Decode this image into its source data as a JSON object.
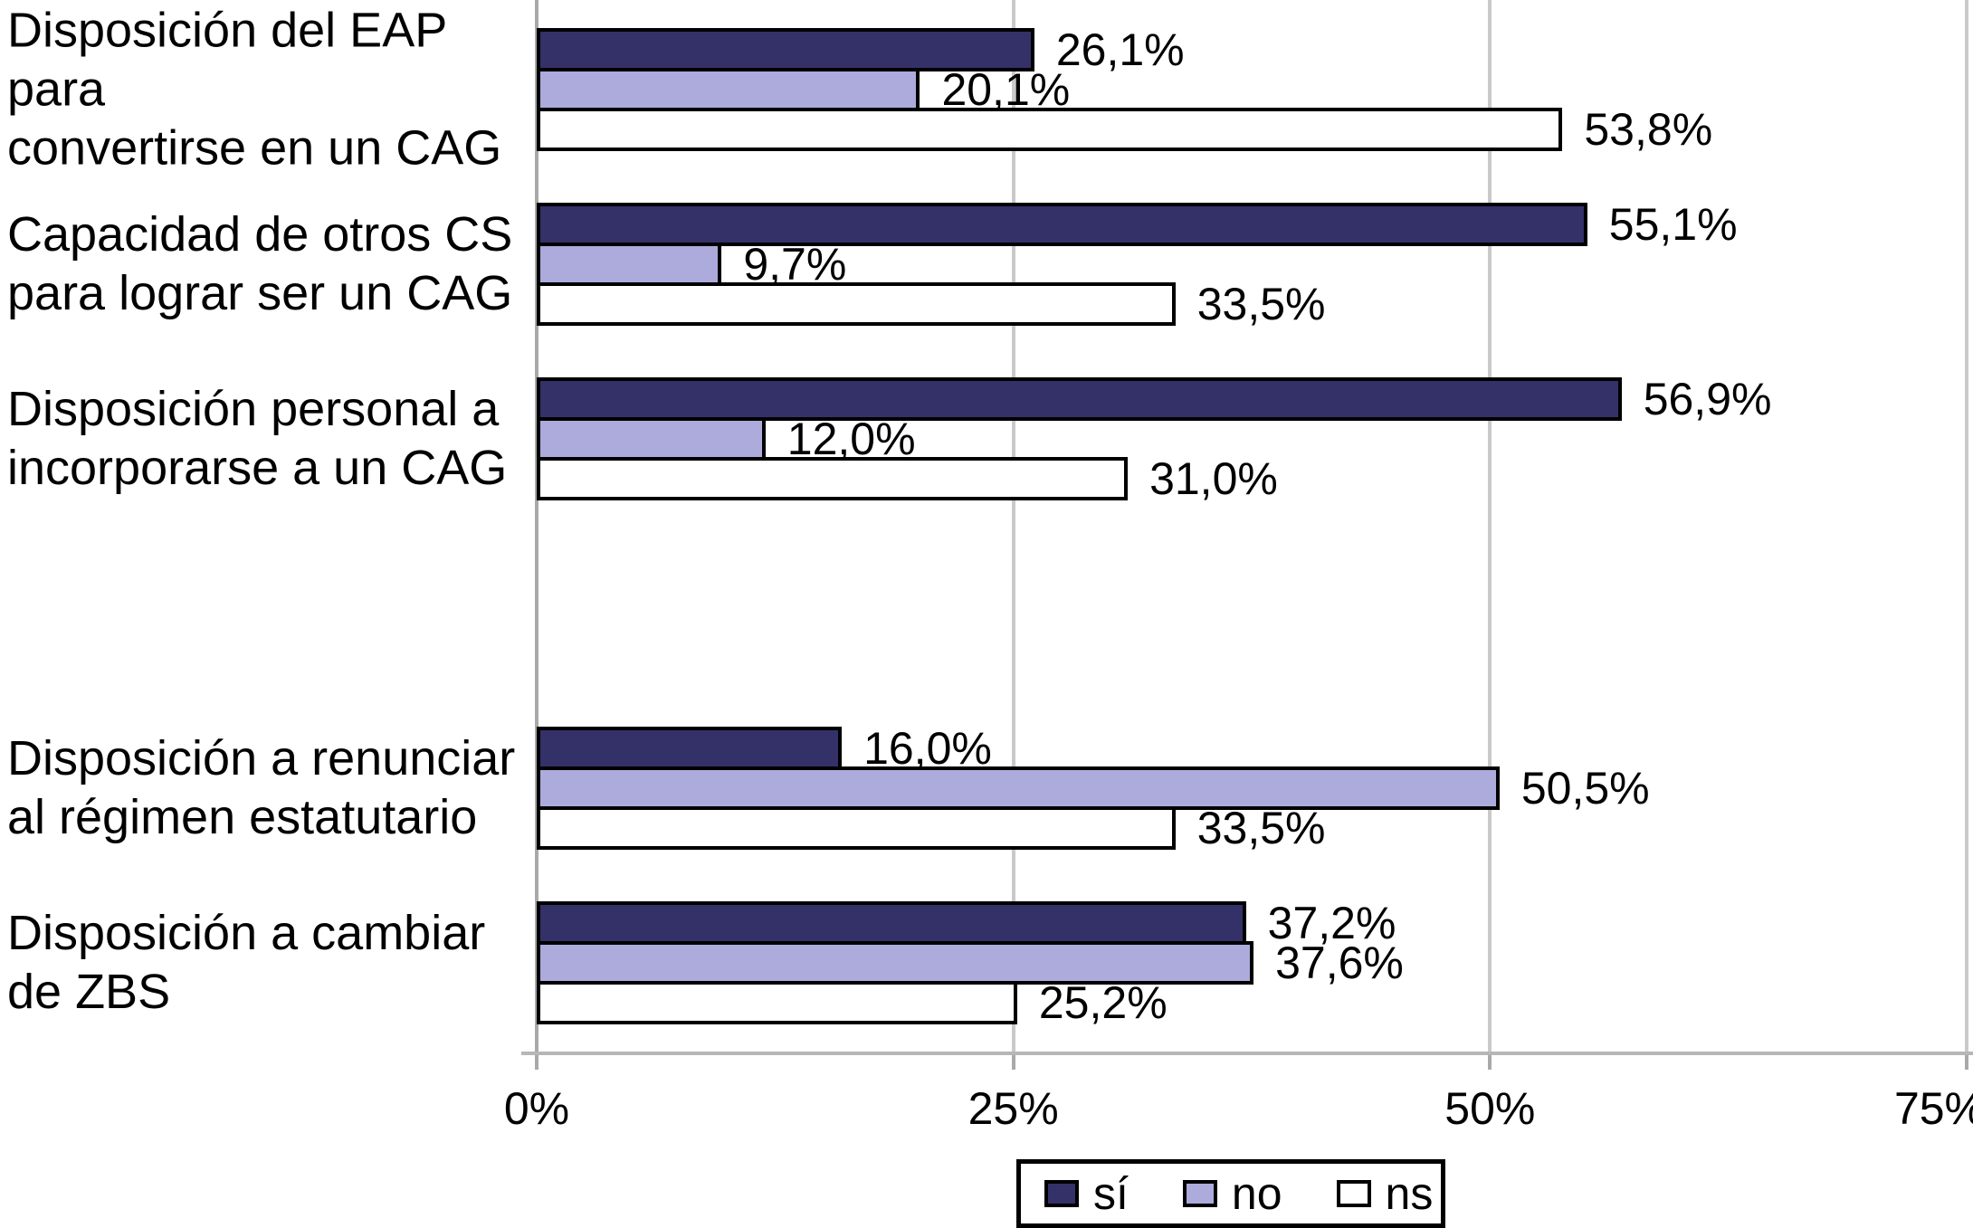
{
  "chart_data": {
    "type": "bar",
    "orientation": "horizontal",
    "title": "",
    "categories": [
      "Disposición del EAP para convertirse en un CAG",
      "Capacidad de otros CS para lograr ser un CAG",
      "Disposición personal a incorporarse a un CAG",
      "Disposición a renunciar al régimen estatutario",
      "Disposición a cambiar de ZBS"
    ],
    "category_lines": [
      [
        "Disposición del EAP para",
        "convertirse en un CAG"
      ],
      [
        "Capacidad de otros CS",
        "para lograr ser un CAG"
      ],
      [
        "Disposición personal a",
        "incorporarse a un CAG"
      ],
      [
        "Disposición a renunciar",
        "al régimen estatutario"
      ],
      [
        "Disposición a cambiar",
        "de ZBS"
      ]
    ],
    "series": [
      {
        "name": "sí",
        "color": "#343168",
        "values": [
          26.1,
          55.1,
          56.9,
          16.0,
          37.2
        ],
        "value_labels": [
          "26,1%",
          "55,1%",
          "56,9%",
          "16,0%",
          "37,2%"
        ]
      },
      {
        "name": "no",
        "color": "#ACABDC",
        "values": [
          20.1,
          9.7,
          12.0,
          50.5,
          37.6
        ],
        "value_labels": [
          "20,1%",
          "9,7%",
          "12,0%",
          "50,5%",
          "37,6%"
        ]
      },
      {
        "name": "ns",
        "color": "#FFFFFF",
        "values": [
          53.8,
          33.5,
          31.0,
          33.5,
          25.2
        ],
        "value_labels": [
          "53,8%",
          "33,5%",
          "31,0%",
          "33,5%",
          "25,2%"
        ]
      }
    ],
    "x_ticks": [
      {
        "value": 0,
        "label": "0%"
      },
      {
        "value": 25,
        "label": "25%"
      },
      {
        "value": 50,
        "label": "50%"
      },
      {
        "value": 75,
        "label": "75%"
      }
    ],
    "xlim": [
      0,
      75
    ],
    "grid": true,
    "legend_position": "bottom",
    "legend_labels": [
      "sí",
      "no",
      "ns"
    ],
    "colors": {
      "bar_border": "#000000",
      "gridline": "#C9C9C9",
      "axis_line": "#A9A9A9",
      "text": "#000000",
      "background": "#FFFFFF"
    }
  }
}
